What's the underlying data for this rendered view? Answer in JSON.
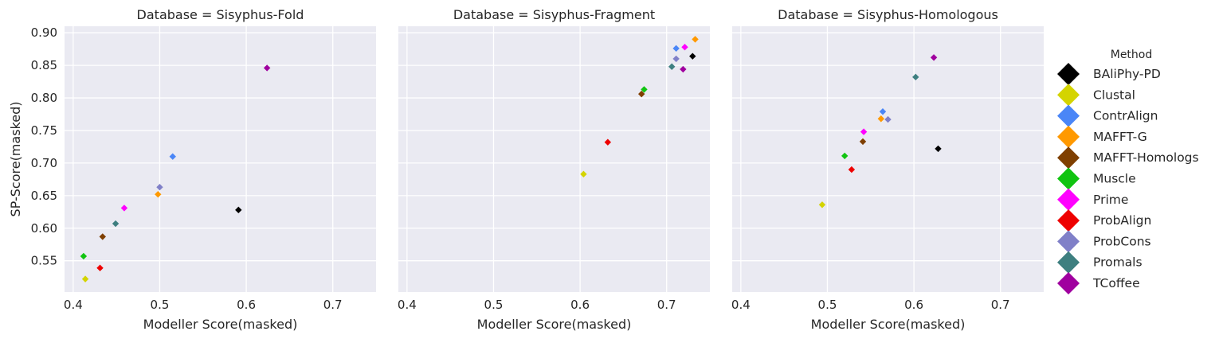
{
  "legend": {
    "title": "Method",
    "items": [
      {
        "name": "BAliPhy-PD",
        "color": "#000000"
      },
      {
        "name": "Clustal",
        "color": "#d4d400"
      },
      {
        "name": "ContrAlign",
        "color": "#4a86f7"
      },
      {
        "name": "MAFFT-G",
        "color": "#ff9900"
      },
      {
        "name": "MAFFT-Homologs",
        "color": "#7f3f00"
      },
      {
        "name": "Muscle",
        "color": "#11c411"
      },
      {
        "name": "Prime",
        "color": "#ff00ff"
      },
      {
        "name": "ProbAlign",
        "color": "#ee0000"
      },
      {
        "name": "ProbCons",
        "color": "#8080c8"
      },
      {
        "name": "Promals",
        "color": "#3e7f80"
      },
      {
        "name": "TCoffee",
        "color": "#a0009f"
      }
    ]
  },
  "chart_data": [
    {
      "type": "scatter",
      "title": "Database = Sisyphus-Fold",
      "xlabel": "Modeller Score(masked)",
      "ylabel": "SP-Score(masked)",
      "xlim": [
        0.39,
        0.75
      ],
      "ylim": [
        0.502,
        0.91
      ],
      "xticks": [
        "0.4",
        "0.5",
        "0.6",
        "0.7"
      ],
      "yticks": [
        "0.55",
        "0.60",
        "0.65",
        "0.70",
        "0.75",
        "0.80",
        "0.85",
        "0.90"
      ],
      "grid": true,
      "points": [
        {
          "series": "BAliPhy-PD",
          "x": 0.591,
          "y": 0.628
        },
        {
          "series": "Clustal",
          "x": 0.414,
          "y": 0.522
        },
        {
          "series": "ContrAlign",
          "x": 0.515,
          "y": 0.71
        },
        {
          "series": "MAFFT-G",
          "x": 0.498,
          "y": 0.652
        },
        {
          "series": "MAFFT-Homologs",
          "x": 0.434,
          "y": 0.587
        },
        {
          "series": "Muscle",
          "x": 0.412,
          "y": 0.557
        },
        {
          "series": "Prime",
          "x": 0.459,
          "y": 0.631
        },
        {
          "series": "ProbAlign",
          "x": 0.431,
          "y": 0.539
        },
        {
          "series": "ProbCons",
          "x": 0.5,
          "y": 0.663
        },
        {
          "series": "Promals",
          "x": 0.449,
          "y": 0.607
        },
        {
          "series": "TCoffee",
          "x": 0.624,
          "y": 0.846
        }
      ]
    },
    {
      "type": "scatter",
      "title": "Database = Sisyphus-Fragment",
      "xlabel": "Modeller Score(masked)",
      "ylabel": "",
      "xlim": [
        0.39,
        0.75
      ],
      "ylim": [
        0.502,
        0.91
      ],
      "xticks": [
        "0.4",
        "0.5",
        "0.6",
        "0.7"
      ],
      "yticks": [],
      "grid": true,
      "points": [
        {
          "series": "BAliPhy-PD",
          "x": 0.73,
          "y": 0.864
        },
        {
          "series": "Clustal",
          "x": 0.604,
          "y": 0.683
        },
        {
          "series": "ContrAlign",
          "x": 0.711,
          "y": 0.876
        },
        {
          "series": "MAFFT-G",
          "x": 0.733,
          "y": 0.89
        },
        {
          "series": "MAFFT-Homologs",
          "x": 0.671,
          "y": 0.806
        },
        {
          "series": "Muscle",
          "x": 0.674,
          "y": 0.813
        },
        {
          "series": "Prime",
          "x": 0.721,
          "y": 0.878
        },
        {
          "series": "ProbAlign",
          "x": 0.632,
          "y": 0.732
        },
        {
          "series": "ProbCons",
          "x": 0.711,
          "y": 0.86
        },
        {
          "series": "Promals",
          "x": 0.706,
          "y": 0.848
        },
        {
          "series": "TCoffee",
          "x": 0.719,
          "y": 0.844
        }
      ]
    },
    {
      "type": "scatter",
      "title": "Database = Sisyphus-Homologous",
      "xlabel": "Modeller Score(masked)",
      "ylabel": "",
      "xlim": [
        0.39,
        0.75
      ],
      "ylim": [
        0.502,
        0.91
      ],
      "xticks": [
        "0.4",
        "0.5",
        "0.6",
        "0.7"
      ],
      "yticks": [],
      "grid": true,
      "points": [
        {
          "series": "BAliPhy-PD",
          "x": 0.628,
          "y": 0.722
        },
        {
          "series": "Clustal",
          "x": 0.494,
          "y": 0.636
        },
        {
          "series": "ContrAlign",
          "x": 0.564,
          "y": 0.779
        },
        {
          "series": "MAFFT-G",
          "x": 0.562,
          "y": 0.768
        },
        {
          "series": "MAFFT-Homologs",
          "x": 0.541,
          "y": 0.733
        },
        {
          "series": "Muscle",
          "x": 0.52,
          "y": 0.711
        },
        {
          "series": "Prime",
          "x": 0.542,
          "y": 0.748
        },
        {
          "series": "ProbAlign",
          "x": 0.528,
          "y": 0.69
        },
        {
          "series": "ProbCons",
          "x": 0.57,
          "y": 0.767
        },
        {
          "series": "Promals",
          "x": 0.602,
          "y": 0.832
        },
        {
          "series": "TCoffee",
          "x": 0.623,
          "y": 0.862
        }
      ]
    }
  ]
}
